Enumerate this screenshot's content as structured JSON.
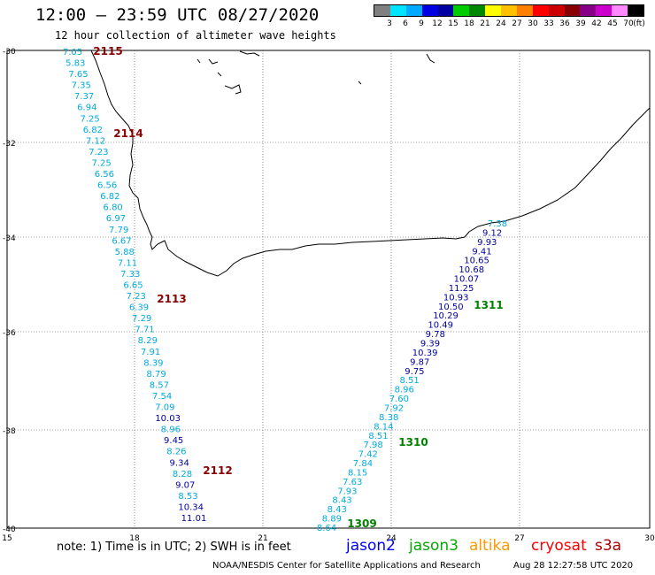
{
  "header": {
    "title": "12:00 – 23:59 UTC 08/27/2020",
    "subtitle": "12 hour collection of altimeter wave heights"
  },
  "legend": {
    "unit": "(ft)",
    "ticks": [
      "3",
      "6",
      "9",
      "12",
      "15",
      "18",
      "21",
      "24",
      "27",
      "30",
      "33",
      "36",
      "39",
      "42",
      "45",
      "70"
    ],
    "colors": [
      "#808080",
      "#00e5ff",
      "#00aaff",
      "#0000e0",
      "#0000a0",
      "#00cc00",
      "#008800",
      "#ffff00",
      "#ffc000",
      "#ff8000",
      "#ff0000",
      "#cc0000",
      "#880000",
      "#880088",
      "#cc00cc",
      "#ff88ff",
      "#000000"
    ]
  },
  "axes": {
    "lat_ticks": [
      "-30",
      "-32",
      "-34",
      "-36",
      "-38",
      "-40"
    ],
    "lon_ticks": [
      "15",
      "18",
      "21",
      "24",
      "27",
      "30"
    ]
  },
  "pass_labels": [
    {
      "text": "2115",
      "color": "#8b0000"
    },
    {
      "text": "2114",
      "color": "#8b0000"
    },
    {
      "text": "2113",
      "color": "#8b0000"
    },
    {
      "text": "2112",
      "color": "#8b0000"
    },
    {
      "text": "1311",
      "color": "#008000"
    },
    {
      "text": "1310",
      "color": "#008000"
    },
    {
      "text": "1309",
      "color": "#008000"
    }
  ],
  "tracks": {
    "west": [
      {
        "v": "7.05",
        "c": "cyan"
      },
      {
        "v": "5.83",
        "c": "cyan"
      },
      {
        "v": "7.65",
        "c": "cyan"
      },
      {
        "v": "7.35",
        "c": "cyan"
      },
      {
        "v": "7.37",
        "c": "cyan"
      },
      {
        "v": "6.94",
        "c": "cyan"
      },
      {
        "v": "7.25",
        "c": "cyan"
      },
      {
        "v": "6.82",
        "c": "cyan"
      },
      {
        "v": "7.12",
        "c": "cyan"
      },
      {
        "v": "7.23",
        "c": "cyan"
      },
      {
        "v": "7.25",
        "c": "cyan"
      },
      {
        "v": "6.56",
        "c": "cyan"
      },
      {
        "v": "6.56",
        "c": "cyan"
      },
      {
        "v": "6.82",
        "c": "cyan"
      },
      {
        "v": "6.80",
        "c": "cyan"
      },
      {
        "v": "6.97",
        "c": "cyan"
      },
      {
        "v": "7.79",
        "c": "cyan"
      },
      {
        "v": "6.67",
        "c": "cyan"
      },
      {
        "v": "5.88",
        "c": "cyan"
      },
      {
        "v": "7.11",
        "c": "cyan"
      },
      {
        "v": "7.33",
        "c": "cyan"
      },
      {
        "v": "6.65",
        "c": "cyan"
      },
      {
        "v": "7.23",
        "c": "cyan"
      },
      {
        "v": "6.39",
        "c": "cyan"
      },
      {
        "v": "7.29",
        "c": "cyan"
      },
      {
        "v": "7.71",
        "c": "cyan"
      },
      {
        "v": "8.29",
        "c": "cyan"
      },
      {
        "v": "7.91",
        "c": "cyan"
      },
      {
        "v": "8.39",
        "c": "cyan"
      },
      {
        "v": "8.79",
        "c": "cyan"
      },
      {
        "v": "8.57",
        "c": "cyan"
      },
      {
        "v": "7.54",
        "c": "cyan"
      },
      {
        "v": "7.09",
        "c": "cyan"
      },
      {
        "v": "10.03",
        "c": "blue"
      },
      {
        "v": "8.96",
        "c": "cyan"
      },
      {
        "v": "9.45",
        "c": "blue"
      },
      {
        "v": "8.26",
        "c": "cyan"
      },
      {
        "v": "9.34",
        "c": "blue"
      },
      {
        "v": "8.28",
        "c": "cyan"
      },
      {
        "v": "9.07",
        "c": "blue"
      },
      {
        "v": "8.53",
        "c": "cyan"
      },
      {
        "v": "10.34",
        "c": "blue"
      },
      {
        "v": "11.01",
        "c": "blue"
      }
    ],
    "east": [
      {
        "v": "7.38",
        "c": "cyan"
      },
      {
        "v": "9.12",
        "c": "blue"
      },
      {
        "v": "9.93",
        "c": "blue"
      },
      {
        "v": "9.41",
        "c": "blue"
      },
      {
        "v": "10.65",
        "c": "blue"
      },
      {
        "v": "10.68",
        "c": "blue"
      },
      {
        "v": "10.07",
        "c": "blue"
      },
      {
        "v": "11.25",
        "c": "blue"
      },
      {
        "v": "10.93",
        "c": "blue"
      },
      {
        "v": "10.50",
        "c": "blue"
      },
      {
        "v": "10.29",
        "c": "blue"
      },
      {
        "v": "10.49",
        "c": "blue"
      },
      {
        "v": "9.78",
        "c": "blue"
      },
      {
        "v": "9.39",
        "c": "blue"
      },
      {
        "v": "10.39",
        "c": "blue"
      },
      {
        "v": "9.87",
        "c": "blue"
      },
      {
        "v": "9.75",
        "c": "blue"
      },
      {
        "v": "8.51",
        "c": "cyan"
      },
      {
        "v": "8.96",
        "c": "cyan"
      },
      {
        "v": "7.60",
        "c": "cyan"
      },
      {
        "v": "7.92",
        "c": "cyan"
      },
      {
        "v": "8.38",
        "c": "cyan"
      },
      {
        "v": "8.14",
        "c": "cyan"
      },
      {
        "v": "8.51",
        "c": "cyan"
      },
      {
        "v": "7.98",
        "c": "cyan"
      },
      {
        "v": "7.42",
        "c": "cyan"
      },
      {
        "v": "7.84",
        "c": "cyan"
      },
      {
        "v": "8.15",
        "c": "cyan"
      },
      {
        "v": "7.63",
        "c": "cyan"
      },
      {
        "v": "7.93",
        "c": "cyan"
      },
      {
        "v": "8.43",
        "c": "cyan"
      },
      {
        "v": "8.43",
        "c": "cyan"
      },
      {
        "v": "8.89",
        "c": "cyan"
      },
      {
        "v": "8.64",
        "c": "cyan"
      }
    ]
  },
  "value_colors": {
    "cyan": "#00aadd",
    "blue": "#0000a0"
  },
  "footer": {
    "note": "note: 1) Time is in UTC; 2) SWH is in feet",
    "satellites": [
      {
        "name": "jason2",
        "color": "#0000ff"
      },
      {
        "name": "jason3",
        "color": "#00aa00"
      },
      {
        "name": "altika",
        "color": "#ff9900"
      },
      {
        "name": "cryosat",
        "color": "#ff0000"
      },
      {
        "name": "s3a",
        "color": "#aa0000"
      }
    ],
    "credit": "NOAA/NESDIS Center for Satellite Applications and Research",
    "timestamp": "Aug 28 12:27:58 UTC 2020"
  }
}
